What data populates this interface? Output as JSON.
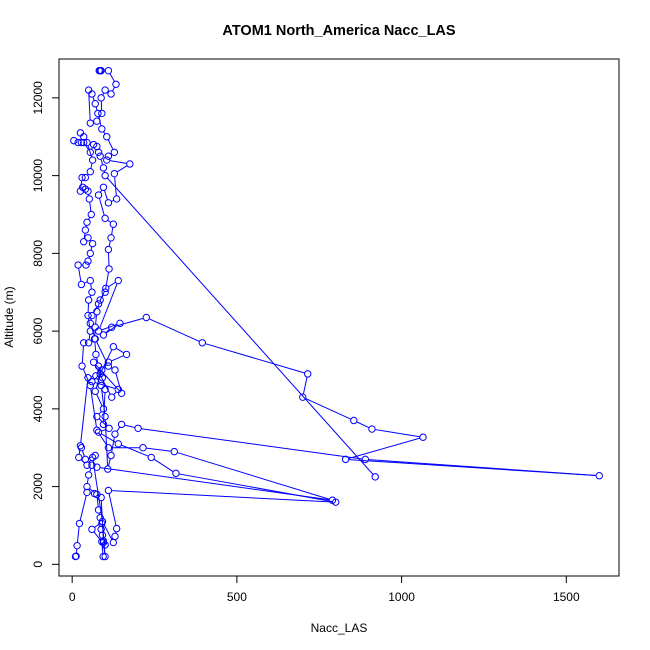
{
  "chart_data": {
    "type": "line",
    "title": "ATOM1 North_America Nacc_LAS",
    "xlabel": "Nacc_LAS",
    "ylabel": "Altitude (m)",
    "xlim": [
      -40,
      1660
    ],
    "ylim": [
      -300,
      13000
    ],
    "xticks": [
      0,
      500,
      1000,
      1500
    ],
    "yticks": [
      0,
      2000,
      4000,
      6000,
      8000,
      10000,
      12000
    ],
    "color": "#0000ff",
    "marker": "open-circle",
    "grid": false,
    "series": [
      {
        "points": [
          [
            10,
            200
          ],
          [
            12,
            210
          ],
          [
            15,
            480
          ],
          [
            22,
            1050
          ],
          [
            45,
            1850
          ],
          [
            68,
            1820
          ],
          [
            88,
            1720
          ],
          [
            95,
            560
          ],
          [
            100,
            200
          ],
          [
            92,
            1100
          ],
          [
            62,
            2750
          ],
          [
            45,
            2550
          ],
          [
            20,
            2750
          ],
          [
            25,
            3050
          ],
          [
            48,
            4800
          ],
          [
            72,
            4850
          ],
          [
            88,
            4600
          ],
          [
            100,
            3800
          ],
          [
            108,
            2450
          ],
          [
            118,
            2800
          ],
          [
            130,
            3350
          ],
          [
            150,
            3600
          ],
          [
            200,
            3500
          ],
          [
            890,
            2700
          ],
          [
            1600,
            2280
          ],
          [
            830,
            2700
          ],
          [
            1065,
            3270
          ],
          [
            910,
            3480
          ],
          [
            855,
            3700
          ],
          [
            700,
            4300
          ],
          [
            715,
            4900
          ],
          [
            395,
            5700
          ],
          [
            225,
            6350
          ],
          [
            120,
            6100
          ],
          [
            95,
            5900
          ],
          [
            145,
            6200
          ],
          [
            80,
            6000
          ],
          [
            140,
            7300
          ],
          [
            102,
            7100
          ],
          [
            80,
            6700
          ],
          [
            60,
            6400
          ],
          [
            55,
            6200
          ],
          [
            70,
            5800
          ],
          [
            110,
            5100
          ],
          [
            130,
            5000
          ],
          [
            150,
            4400
          ],
          [
            65,
            5200
          ],
          [
            120,
            4300
          ],
          [
            140,
            4500
          ],
          [
            60,
            4700
          ],
          [
            85,
            4900
          ],
          [
            125,
            5600
          ],
          [
            165,
            5400
          ],
          [
            110,
            5200
          ],
          [
            90,
            5000
          ],
          [
            70,
            4450
          ],
          [
            95,
            4000
          ],
          [
            75,
            3800
          ],
          [
            112,
            3500
          ],
          [
            80,
            3400
          ],
          [
            140,
            3100
          ],
          [
            240,
            2750
          ],
          [
            315,
            2340
          ],
          [
            800,
            1600
          ],
          [
            110,
            1900
          ],
          [
            135,
            920
          ],
          [
            130,
            720
          ],
          [
            125,
            560
          ],
          [
            92,
            1100
          ],
          [
            60,
            900
          ],
          [
            90,
            580
          ],
          [
            94,
            200
          ]
        ]
      },
      {
        "points": [
          [
            82,
            12700
          ],
          [
            85,
            12700
          ],
          [
            88,
            12700
          ],
          [
            110,
            12700
          ],
          [
            133,
            12350
          ],
          [
            118,
            12100
          ],
          [
            100,
            12200
          ],
          [
            88,
            12000
          ],
          [
            90,
            11600
          ],
          [
            75,
            11400
          ],
          [
            55,
            11350
          ],
          [
            50,
            12200
          ],
          [
            60,
            12100
          ],
          [
            70,
            11850
          ],
          [
            78,
            11600
          ],
          [
            90,
            11200
          ],
          [
            105,
            11000
          ],
          [
            128,
            10600
          ],
          [
            110,
            10500
          ],
          [
            105,
            10400
          ],
          [
            175,
            10300
          ],
          [
            128,
            10050
          ],
          [
            135,
            9400
          ],
          [
            110,
            9300
          ],
          [
            95,
            9700
          ],
          [
            80,
            9500
          ],
          [
            100,
            8900
          ],
          [
            125,
            8750
          ],
          [
            118,
            8400
          ],
          [
            110,
            8100
          ],
          [
            112,
            7600
          ],
          [
            100,
            7000
          ],
          [
            85,
            6800
          ],
          [
            75,
            6500
          ],
          [
            70,
            6100
          ],
          [
            68,
            5800
          ],
          [
            72,
            5400
          ],
          [
            80,
            5100
          ],
          [
            92,
            4800
          ],
          [
            100,
            4500
          ],
          [
            95,
            3600
          ]
        ]
      },
      {
        "points": [
          [
            5,
            10900
          ],
          [
            18,
            10850
          ],
          [
            28,
            10850
          ],
          [
            35,
            10850
          ],
          [
            55,
            10600
          ],
          [
            65,
            10800
          ],
          [
            75,
            10750
          ],
          [
            80,
            10600
          ],
          [
            85,
            10500
          ],
          [
            95,
            10200
          ],
          [
            100,
            10000
          ],
          [
            920,
            2250
          ]
        ]
      },
      {
        "points": [
          [
            25,
            11100
          ],
          [
            35,
            11000
          ],
          [
            45,
            10850
          ],
          [
            62,
            10400
          ],
          [
            55,
            10100
          ],
          [
            40,
            9950
          ],
          [
            30,
            9950
          ],
          [
            25,
            9600
          ],
          [
            32,
            9700
          ],
          [
            40,
            9650
          ],
          [
            48,
            9600
          ],
          [
            52,
            9400
          ],
          [
            58,
            9000
          ],
          [
            45,
            8800
          ],
          [
            40,
            8600
          ],
          [
            35,
            8300
          ],
          [
            48,
            8400
          ],
          [
            62,
            8250
          ],
          [
            55,
            8000
          ],
          [
            48,
            7800
          ],
          [
            42,
            7700
          ],
          [
            18,
            7700
          ],
          [
            28,
            7200
          ],
          [
            55,
            7300
          ],
          [
            60,
            7000
          ],
          [
            50,
            6800
          ],
          [
            48,
            6400
          ],
          [
            55,
            6000
          ],
          [
            50,
            5700
          ],
          [
            35,
            5700
          ],
          [
            30,
            5100
          ],
          [
            55,
            4600
          ],
          [
            75,
            3450
          ],
          [
            110,
            3000
          ],
          [
            215,
            3000
          ],
          [
            310,
            2900
          ],
          [
            790,
            1650
          ],
          [
            75,
            2500
          ]
        ]
      },
      {
        "points": [
          [
            28,
            3000
          ],
          [
            40,
            2700
          ],
          [
            70,
            2800
          ],
          [
            60,
            2550
          ],
          [
            50,
            2300
          ],
          [
            45,
            2000
          ],
          [
            75,
            1800
          ],
          [
            80,
            1400
          ],
          [
            85,
            1200
          ],
          [
            90,
            1050
          ],
          [
            88,
            900
          ],
          [
            92,
            750
          ],
          [
            95,
            600
          ],
          [
            100,
            500
          ]
        ]
      }
    ]
  }
}
